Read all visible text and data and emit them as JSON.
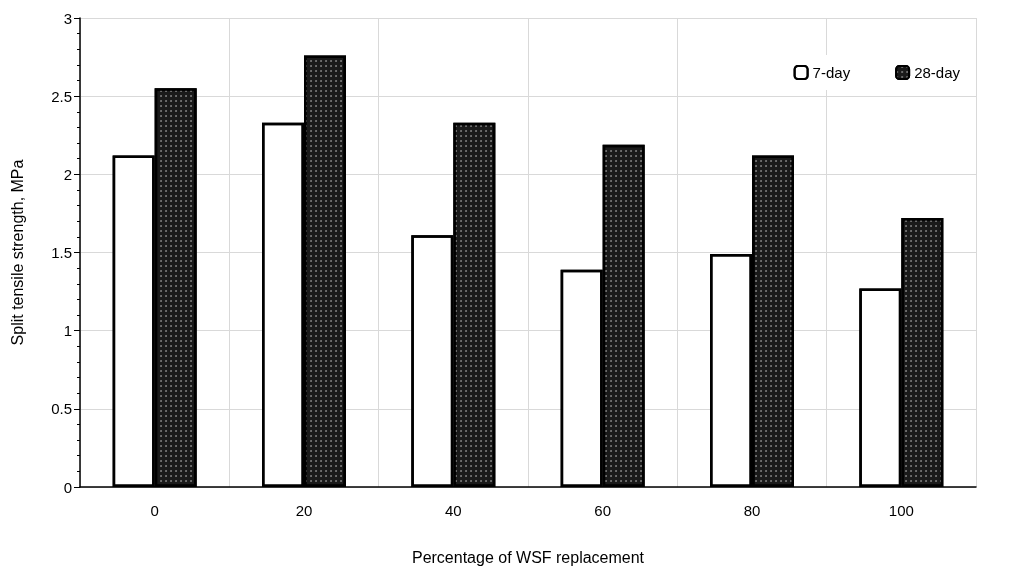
{
  "chart_data": {
    "type": "bar",
    "xlabel": "Percentage of WSF replacement",
    "ylabel": "Split tensile strength, MPa",
    "categories": [
      "0",
      "20",
      "40",
      "60",
      "80",
      "100"
    ],
    "series": [
      {
        "name": "7-day",
        "color": "#ffffff",
        "values": [
          2.12,
          2.33,
          1.61,
          1.39,
          1.49,
          1.27
        ]
      },
      {
        "name": "28-day",
        "color": "#1a1a1a",
        "values": [
          2.55,
          2.76,
          2.33,
          2.19,
          2.12,
          1.72
        ]
      }
    ],
    "ylim": [
      0,
      3
    ],
    "yticks": [
      0,
      0.5,
      1,
      1.5,
      2,
      2.5,
      3
    ],
    "grid": true,
    "legend": "top right"
  }
}
